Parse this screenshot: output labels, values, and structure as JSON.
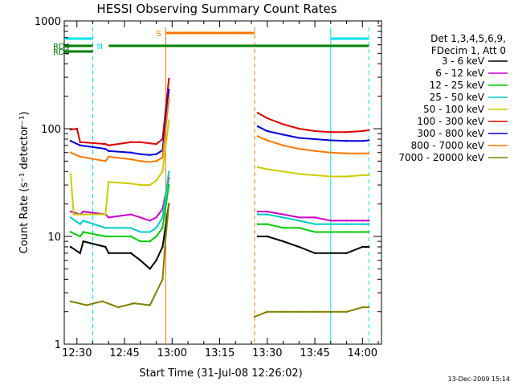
{
  "chart_data": {
    "type": "line",
    "title": "HESSI Observing Summary Count Rates",
    "xlabel": "Start Time (31-Jul-08 12:26:02)",
    "ylabel": "Count Rate (s⁻¹ detector⁻¹)",
    "yscale": "log",
    "xlim": [
      "12:26",
      "14:06"
    ],
    "ylim": [
      1,
      1000
    ],
    "x_tick_labels": [
      "12:30",
      "12:45",
      "13:00",
      "13:15",
      "13:30",
      "13:45",
      "14:00"
    ],
    "x_tick_values": [
      "12:30",
      "12:45",
      "13:00",
      "13:15",
      "13:30",
      "13:45",
      "14:00"
    ],
    "y_tick_labels": [
      "1",
      "10",
      "100",
      "1000"
    ],
    "y_tick_values": [
      1,
      10,
      100,
      1000
    ],
    "legend": {
      "position": "right",
      "header": [
        "Det 1,3,4,5,6,9,",
        "FDecim 1, Att 0"
      ]
    },
    "series": [
      {
        "name": "3 - 6 keV",
        "color": "#000000",
        "x": [
          "12:28",
          "12:31",
          "12:32",
          "12:39",
          "12:40",
          "12:47",
          "12:50",
          "12:53",
          "12:55",
          "12:57",
          "12:59",
          "13:27",
          "13:30",
          "13:35",
          "13:40",
          "13:45",
          "13:50",
          "13:55",
          "14:00",
          "14:02"
        ],
        "y": [
          8,
          7,
          9,
          8,
          7,
          7,
          6,
          5,
          6,
          8,
          20,
          10,
          10,
          9,
          8,
          7,
          7,
          7,
          8,
          8
        ]
      },
      {
        "name": "6 - 12 keV",
        "color": "#cc00cc",
        "x": [
          "12:28",
          "12:31",
          "12:32",
          "12:39",
          "12:40",
          "12:47",
          "12:50",
          "12:53",
          "12:55",
          "12:57",
          "12:59",
          "13:27",
          "13:30",
          "13:35",
          "13:40",
          "13:45",
          "13:50",
          "13:55",
          "14:00",
          "14:02"
        ],
        "y": [
          17,
          16,
          17,
          16,
          15,
          16,
          15,
          14,
          15,
          18,
          35,
          17,
          17,
          16,
          15,
          15,
          14,
          14,
          14,
          14
        ]
      },
      {
        "name": "12 - 25 keV",
        "color": "#00cc00",
        "x": [
          "12:28",
          "12:31",
          "12:32",
          "12:39",
          "12:40",
          "12:47",
          "12:50",
          "12:53",
          "12:55",
          "12:57",
          "12:59",
          "13:27",
          "13:30",
          "13:35",
          "13:40",
          "13:45",
          "13:50",
          "13:55",
          "14:00",
          "14:02"
        ],
        "y": [
          11,
          10,
          11,
          10,
          10,
          10,
          9,
          9,
          10,
          12,
          30,
          13,
          13,
          12,
          12,
          11,
          11,
          11,
          11,
          11
        ]
      },
      {
        "name": "25 - 50 keV",
        "color": "#00cccc",
        "x": [
          "12:28",
          "12:31",
          "12:32",
          "12:39",
          "12:40",
          "12:47",
          "12:50",
          "12:53",
          "12:55",
          "12:57",
          "12:59",
          "13:27",
          "13:30",
          "13:35",
          "13:40",
          "13:45",
          "13:50",
          "13:55",
          "14:00",
          "14:02"
        ],
        "y": [
          15,
          13,
          14,
          12,
          12,
          12,
          11,
          11,
          12,
          15,
          40,
          16,
          16,
          15,
          14,
          13,
          13,
          13,
          13,
          13
        ]
      },
      {
        "name": "50 - 100 keV",
        "color": "#cccc00",
        "x": [
          "12:28",
          "12:29",
          "12:30",
          "12:31",
          "12:39",
          "12:40",
          "12:47",
          "12:50",
          "12:53",
          "12:55",
          "12:57",
          "12:59",
          "13:27",
          "13:30",
          "13:35",
          "13:40",
          "13:45",
          "13:50",
          "13:55",
          "14:00",
          "14:02"
        ],
        "y": [
          38,
          16,
          16,
          16,
          16,
          32,
          31,
          30,
          30,
          33,
          40,
          120,
          44,
          42,
          40,
          38,
          37,
          36,
          36,
          37,
          37
        ]
      },
      {
        "name": "100 - 300 keV",
        "color": "#dd0000",
        "x": [
          "12:28",
          "12:30",
          "12:31",
          "12:39",
          "12:40",
          "12:47",
          "12:50",
          "12:53",
          "12:55",
          "12:57",
          "12:59",
          "13:27",
          "13:30",
          "13:35",
          "13:40",
          "13:45",
          "13:50",
          "13:55",
          "14:00",
          "14:02"
        ],
        "y": [
          98,
          100,
          75,
          72,
          70,
          75,
          75,
          73,
          72,
          80,
          290,
          140,
          125,
          110,
          100,
          95,
          93,
          93,
          95,
          97
        ]
      },
      {
        "name": "300 - 800 keV",
        "color": "#0000dd",
        "x": [
          "12:28",
          "12:31",
          "12:39",
          "12:40",
          "12:47",
          "12:50",
          "12:53",
          "12:55",
          "12:57",
          "12:59",
          "13:27",
          "13:30",
          "13:35",
          "13:40",
          "13:45",
          "13:50",
          "13:55",
          "14:00",
          "14:02"
        ],
        "y": [
          77,
          70,
          65,
          62,
          60,
          58,
          57,
          58,
          63,
          230,
          105,
          95,
          88,
          82,
          80,
          78,
          77,
          77,
          78
        ]
      },
      {
        "name": "800 - 7000 keV",
        "color": "#ff7700",
        "x": [
          "12:28",
          "12:31",
          "12:39",
          "12:40",
          "12:47",
          "12:50",
          "12:53",
          "12:55",
          "12:57",
          "12:59",
          "13:27",
          "13:30",
          "13:35",
          "13:40",
          "13:45",
          "13:50",
          "13:55",
          "14:00",
          "14:02"
        ],
        "y": [
          60,
          55,
          50,
          55,
          52,
          50,
          49,
          50,
          54,
          190,
          85,
          78,
          70,
          65,
          62,
          60,
          59,
          59,
          59
        ]
      },
      {
        "name": "7000 - 20000 keV",
        "color": "#808000",
        "x": [
          "12:28",
          "12:33",
          "12:38",
          "12:43",
          "12:48",
          "12:53",
          "12:57",
          "12:58",
          "12:59",
          "13:26",
          "13:30",
          "13:35",
          "13:40",
          "13:45",
          "13:50",
          "13:55",
          "14:00",
          "14:02"
        ],
        "y": [
          2.5,
          2.3,
          2.5,
          2.2,
          2.4,
          2.3,
          4,
          10,
          20,
          1.8,
          2,
          2,
          2,
          2,
          2,
          2,
          2.2,
          2.2
        ]
      }
    ],
    "annotations": [
      {
        "label": "",
        "type": "bar",
        "color": "#00e5ee",
        "x_start": "12:26",
        "x_end": "12:35"
      },
      {
        "label": "N",
        "type": "marker",
        "color": "#00e5ee",
        "x": "12:35"
      },
      {
        "label": "RD0",
        "type": "bar",
        "color": "#008000",
        "x_start": "12:26",
        "x_end": "12:35"
      },
      {
        "label": "RD4",
        "type": "bar",
        "color": "#008000",
        "x_start": "12:26",
        "x_end": "12:35"
      },
      {
        "label": "",
        "type": "bar",
        "color": "#008000",
        "x_start": "12:40",
        "x_end": "14:02"
      },
      {
        "label": "S",
        "type": "marker",
        "color": "#ff7700",
        "x": "12:58"
      },
      {
        "label": "",
        "type": "bar",
        "color": "#ff7700",
        "x_start": "12:58",
        "x_end": "13:26"
      },
      {
        "label": "",
        "type": "bar",
        "color": "#00e5ee",
        "x_start": "13:50",
        "x_end": "14:02"
      }
    ],
    "vlines": [
      {
        "color": "#00e5ee",
        "style": "dashed",
        "x": "12:35"
      },
      {
        "color": "#ff7700",
        "style": "solid",
        "x": "12:58"
      },
      {
        "color": "#ff7700",
        "style": "dashed",
        "x": "13:26"
      },
      {
        "color": "#00e5ee",
        "style": "solid",
        "x": "13:50"
      },
      {
        "color": "#00e5ee",
        "style": "dashed",
        "x": "14:02"
      }
    ],
    "grid": false
  },
  "timestamp": "13-Dec-2009 15:14"
}
